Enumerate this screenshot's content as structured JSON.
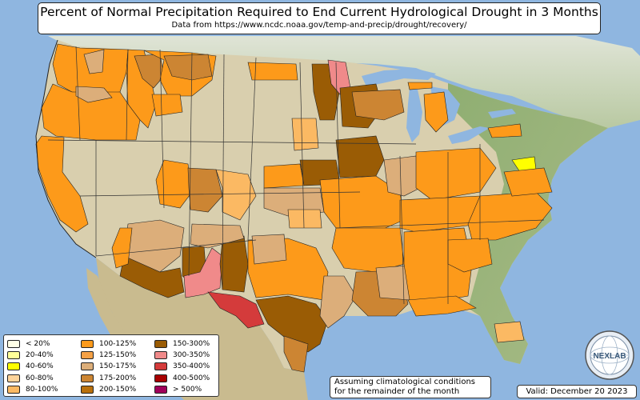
{
  "header": {
    "title": "Percent of Normal Precipitation Required to End Current Hydrological Drought in 3 Months",
    "source": "Data from https://www.ncdc.noaa.gov/temp-and-precip/drought/recovery/"
  },
  "legend": {
    "items": [
      {
        "label": "< 20%",
        "color": "#ffffe6"
      },
      {
        "label": "20-40%",
        "color": "#ffff99"
      },
      {
        "label": "40-60%",
        "color": "#ffff00"
      },
      {
        "label": "60-80%",
        "color": "#fdd39a"
      },
      {
        "label": "80-100%",
        "color": "#fbb963"
      },
      {
        "label": "100-125%",
        "color": "#fd9a1a"
      },
      {
        "label": "125-150%",
        "color": "#f5a146"
      },
      {
        "label": "150-175%",
        "color": "#dcae7a"
      },
      {
        "label": "175-200%",
        "color": "#cc8533"
      },
      {
        "label": "200-150%",
        "color": "#b9700c"
      },
      {
        "label": "150-300%",
        "color": "#9a5c05"
      },
      {
        "label": "300-350%",
        "color": "#f08a8a"
      },
      {
        "label": "350-400%",
        "color": "#d43b3b"
      },
      {
        "label": "400-500%",
        "color": "#a80000"
      },
      {
        "label": "> 500%",
        "color": "#a0005a"
      }
    ]
  },
  "note": {
    "line1": "Assuming climatological conditions",
    "line2": "for the remainder of the month"
  },
  "valid": "Valid: December 20 2023",
  "logo": {
    "text": "NEXLAB",
    "icon": "nexlab-globe-logo"
  },
  "colors": {
    "ocean": "#8fb6e0",
    "land": "#d9cfae",
    "orange": "#fd9a1a",
    "light_orange": "#fbb963",
    "tan": "#dcae7a",
    "brown": "#cc8533",
    "dark_brown": "#9a5c05",
    "pink": "#f08a8a",
    "red": "#d43b3b",
    "yellow": "#ffff00"
  }
}
